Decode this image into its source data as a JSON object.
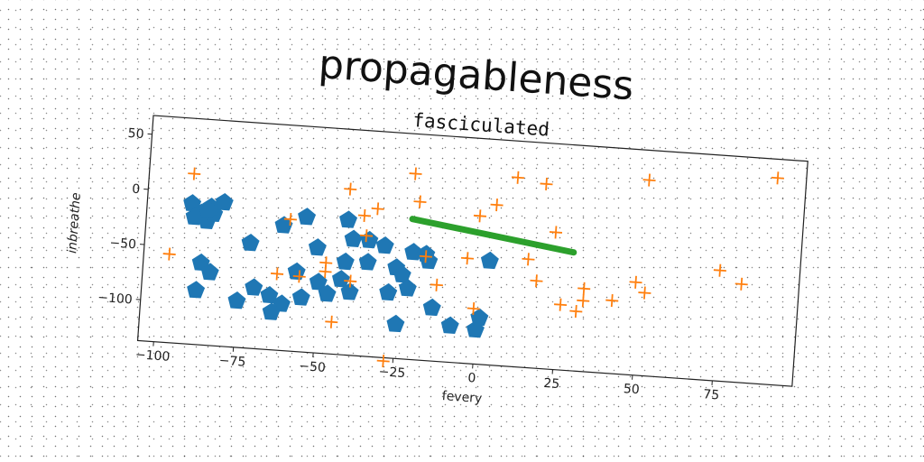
{
  "title": "propagableness",
  "chart_data": {
    "type": "scatter",
    "title": "fasciculated",
    "xlabel": "fevery",
    "ylabel": "inbreathe",
    "xlim": [
      -105,
      100
    ],
    "ylim": [
      -137,
      67
    ],
    "xticks": [
      -100,
      -75,
      -50,
      -25,
      0,
      25,
      50,
      75
    ],
    "yticks": [
      50,
      0,
      -50,
      -100
    ],
    "grid": false,
    "colors": {
      "pentagon": "#1f77b4",
      "plus": "#ff7f0e",
      "line": "#2ca02c"
    },
    "series": [
      {
        "marker": "pentagon",
        "color": "#1f77b4",
        "points": [
          [
            -91,
            -10
          ],
          [
            -88,
            -18
          ],
          [
            -86,
            -25
          ],
          [
            -90,
            -22
          ],
          [
            -84,
            -18
          ],
          [
            -85,
            -12
          ],
          [
            -81,
            -7
          ],
          [
            -86,
            -15
          ],
          [
            -87,
            -63
          ],
          [
            -84,
            -71
          ],
          [
            -88,
            -88
          ],
          [
            -72,
            -42
          ],
          [
            -62,
            -24
          ],
          [
            -55,
            -15
          ],
          [
            -42,
            -15
          ],
          [
            -70,
            -82
          ],
          [
            -75,
            -95
          ],
          [
            -65,
            -88
          ],
          [
            -61,
            -95
          ],
          [
            -64,
            -103
          ],
          [
            -57,
            -65
          ],
          [
            -55,
            -88
          ],
          [
            -50,
            -73
          ],
          [
            -47,
            -83
          ],
          [
            -40,
            -80
          ],
          [
            -43,
            -69
          ],
          [
            -35,
            -52
          ],
          [
            -28,
            -78
          ],
          [
            -51,
            -42
          ],
          [
            -42,
            -53
          ],
          [
            -35,
            -32
          ],
          [
            -30,
            -36
          ],
          [
            -26,
            -55
          ],
          [
            -24,
            -61
          ],
          [
            -22,
            -73
          ],
          [
            -21,
            -40
          ],
          [
            -17,
            -41
          ],
          [
            -16,
            -47
          ],
          [
            -14,
            -89
          ],
          [
            -8,
            -104
          ],
          [
            -25,
            -106
          ],
          [
            0,
            -106
          ],
          [
            1,
            -95
          ],
          [
            3,
            -43
          ],
          [
            -40,
            -32
          ]
        ]
      },
      {
        "marker": "plus",
        "color": "#ff7f0e",
        "points": [
          [
            -91,
            17
          ],
          [
            -97,
            -57
          ],
          [
            -60,
            -18
          ],
          [
            -63,
            -68
          ],
          [
            -56,
            -69
          ],
          [
            -48,
            -63
          ],
          [
            -48,
            -55
          ],
          [
            -42,
            13
          ],
          [
            -40,
            -70
          ],
          [
            -37,
            -10
          ],
          [
            -36,
            -28
          ],
          [
            -33,
            -3
          ],
          [
            -22,
            31
          ],
          [
            -20,
            6
          ],
          [
            -17,
            -43
          ],
          [
            -13,
            -68
          ],
          [
            -28,
            -140
          ],
          [
            -45,
            -108
          ],
          [
            -4,
            -42
          ],
          [
            -1,
            -3
          ],
          [
            -1,
            -87
          ],
          [
            4,
            8
          ],
          [
            10,
            34
          ],
          [
            15,
            -39
          ],
          [
            18,
            -58
          ],
          [
            19,
            30
          ],
          [
            23,
            -13
          ],
          [
            26,
            -78
          ],
          [
            31,
            -83
          ],
          [
            33,
            -62
          ],
          [
            33,
            -73
          ],
          [
            42,
            -71
          ],
          [
            49,
            -53
          ],
          [
            52,
            -62
          ],
          [
            51,
            40
          ],
          [
            75,
            -37
          ],
          [
            82,
            -48
          ],
          [
            91,
            50
          ]
        ]
      },
      {
        "marker": "line",
        "color": "#2ca02c",
        "points": [
          [
            -22,
            -10
          ],
          [
            29,
            -30
          ]
        ]
      }
    ]
  }
}
